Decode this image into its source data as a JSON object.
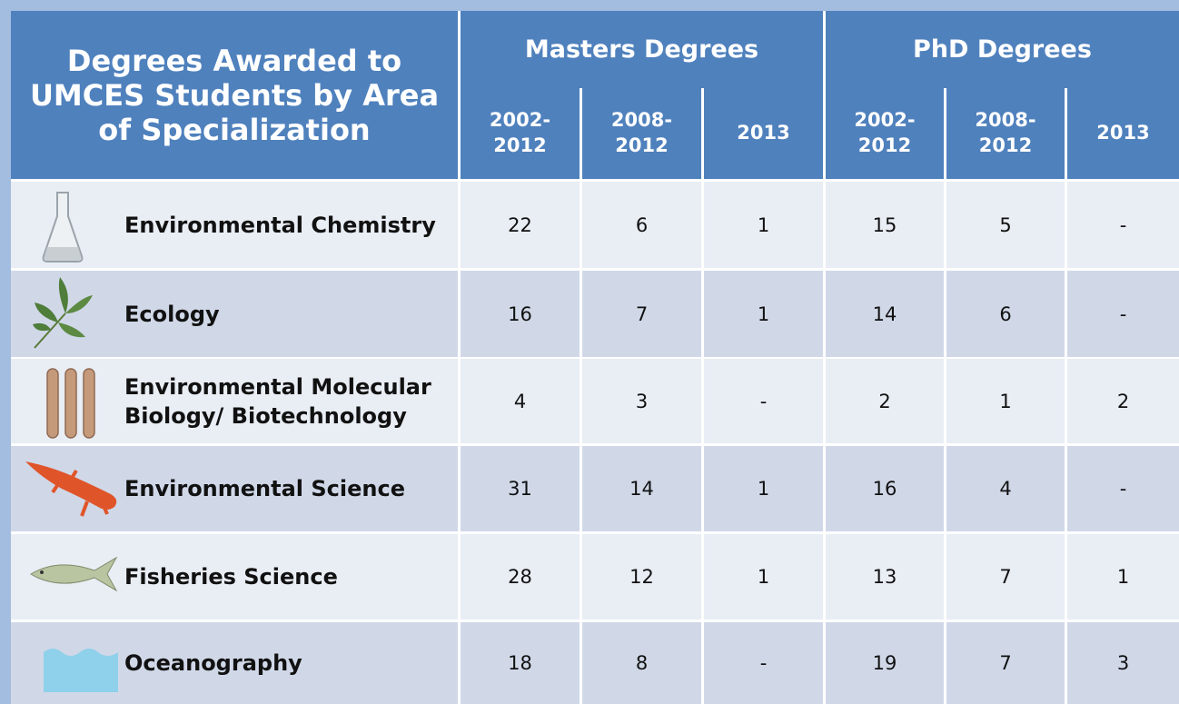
{
  "header": {
    "title": "Degrees Awarded to UMCES Students by Area of Specialization",
    "groups": [
      "Masters Degrees",
      "PhD  Degrees"
    ],
    "columns": [
      "2002-2012",
      "2008-2012",
      "2013",
      "2002-2012",
      "2008-2012",
      "2013"
    ]
  },
  "table": {
    "rows": [
      {
        "label": "Environmental Chemistry",
        "cells": [
          22,
          6,
          1,
          15,
          5,
          "-"
        ]
      },
      {
        "label": "Ecology",
        "cells": [
          16,
          7,
          1,
          14,
          6,
          "-"
        ]
      },
      {
        "label": "Environmental Molecular Biology/ Biotechnology",
        "cells": [
          4,
          3,
          "-",
          2,
          1,
          2
        ]
      },
      {
        "label": "Environmental Science",
        "cells": [
          31,
          14,
          1,
          16,
          4,
          "-"
        ]
      },
      {
        "label": "Fisheries Science",
        "cells": [
          28,
          12,
          1,
          13,
          7,
          1
        ]
      },
      {
        "label": "Oceanography",
        "cells": [
          18,
          8,
          "-",
          19,
          7,
          3
        ]
      }
    ]
  }
}
